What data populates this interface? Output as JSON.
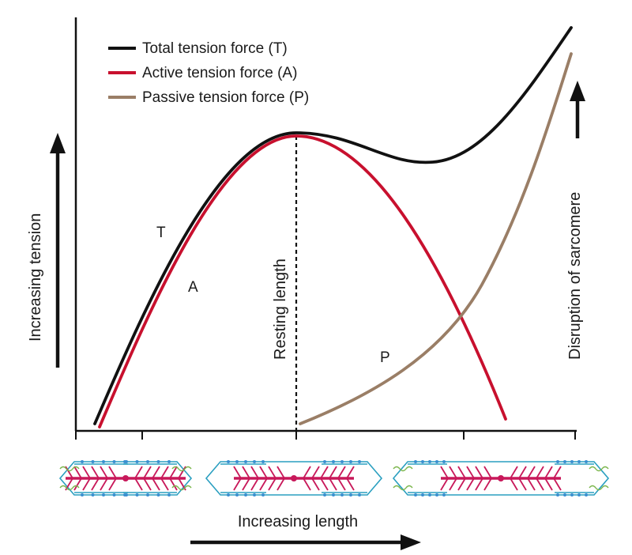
{
  "legend": {
    "items": [
      {
        "label": "Total tension force (T)",
        "color": "#111111"
      },
      {
        "label": "Active tension force (A)",
        "color": "#c8102e"
      },
      {
        "label": "Passive tension force (P)",
        "color": "#9a7e66"
      }
    ]
  },
  "curves": {
    "total_label": "T",
    "active_label": "A",
    "passive_label": "P"
  },
  "annotations": {
    "resting_length": "Resting length",
    "disruption": "Disruption of sarcomere"
  },
  "axes": {
    "y_title": "Increasing tension",
    "x_title": "Increasing length"
  },
  "sarcomeres": [
    {
      "state": "contracted"
    },
    {
      "state": "resting"
    },
    {
      "state": "stretched"
    }
  ],
  "colors": {
    "total": "#111111",
    "active": "#c8102e",
    "passive": "#9a7e66",
    "z_disc": "#2a9fc0",
    "myosin": "#c8185a",
    "actin_head": "#3a8fd0",
    "titin": "#7ab54a"
  }
}
